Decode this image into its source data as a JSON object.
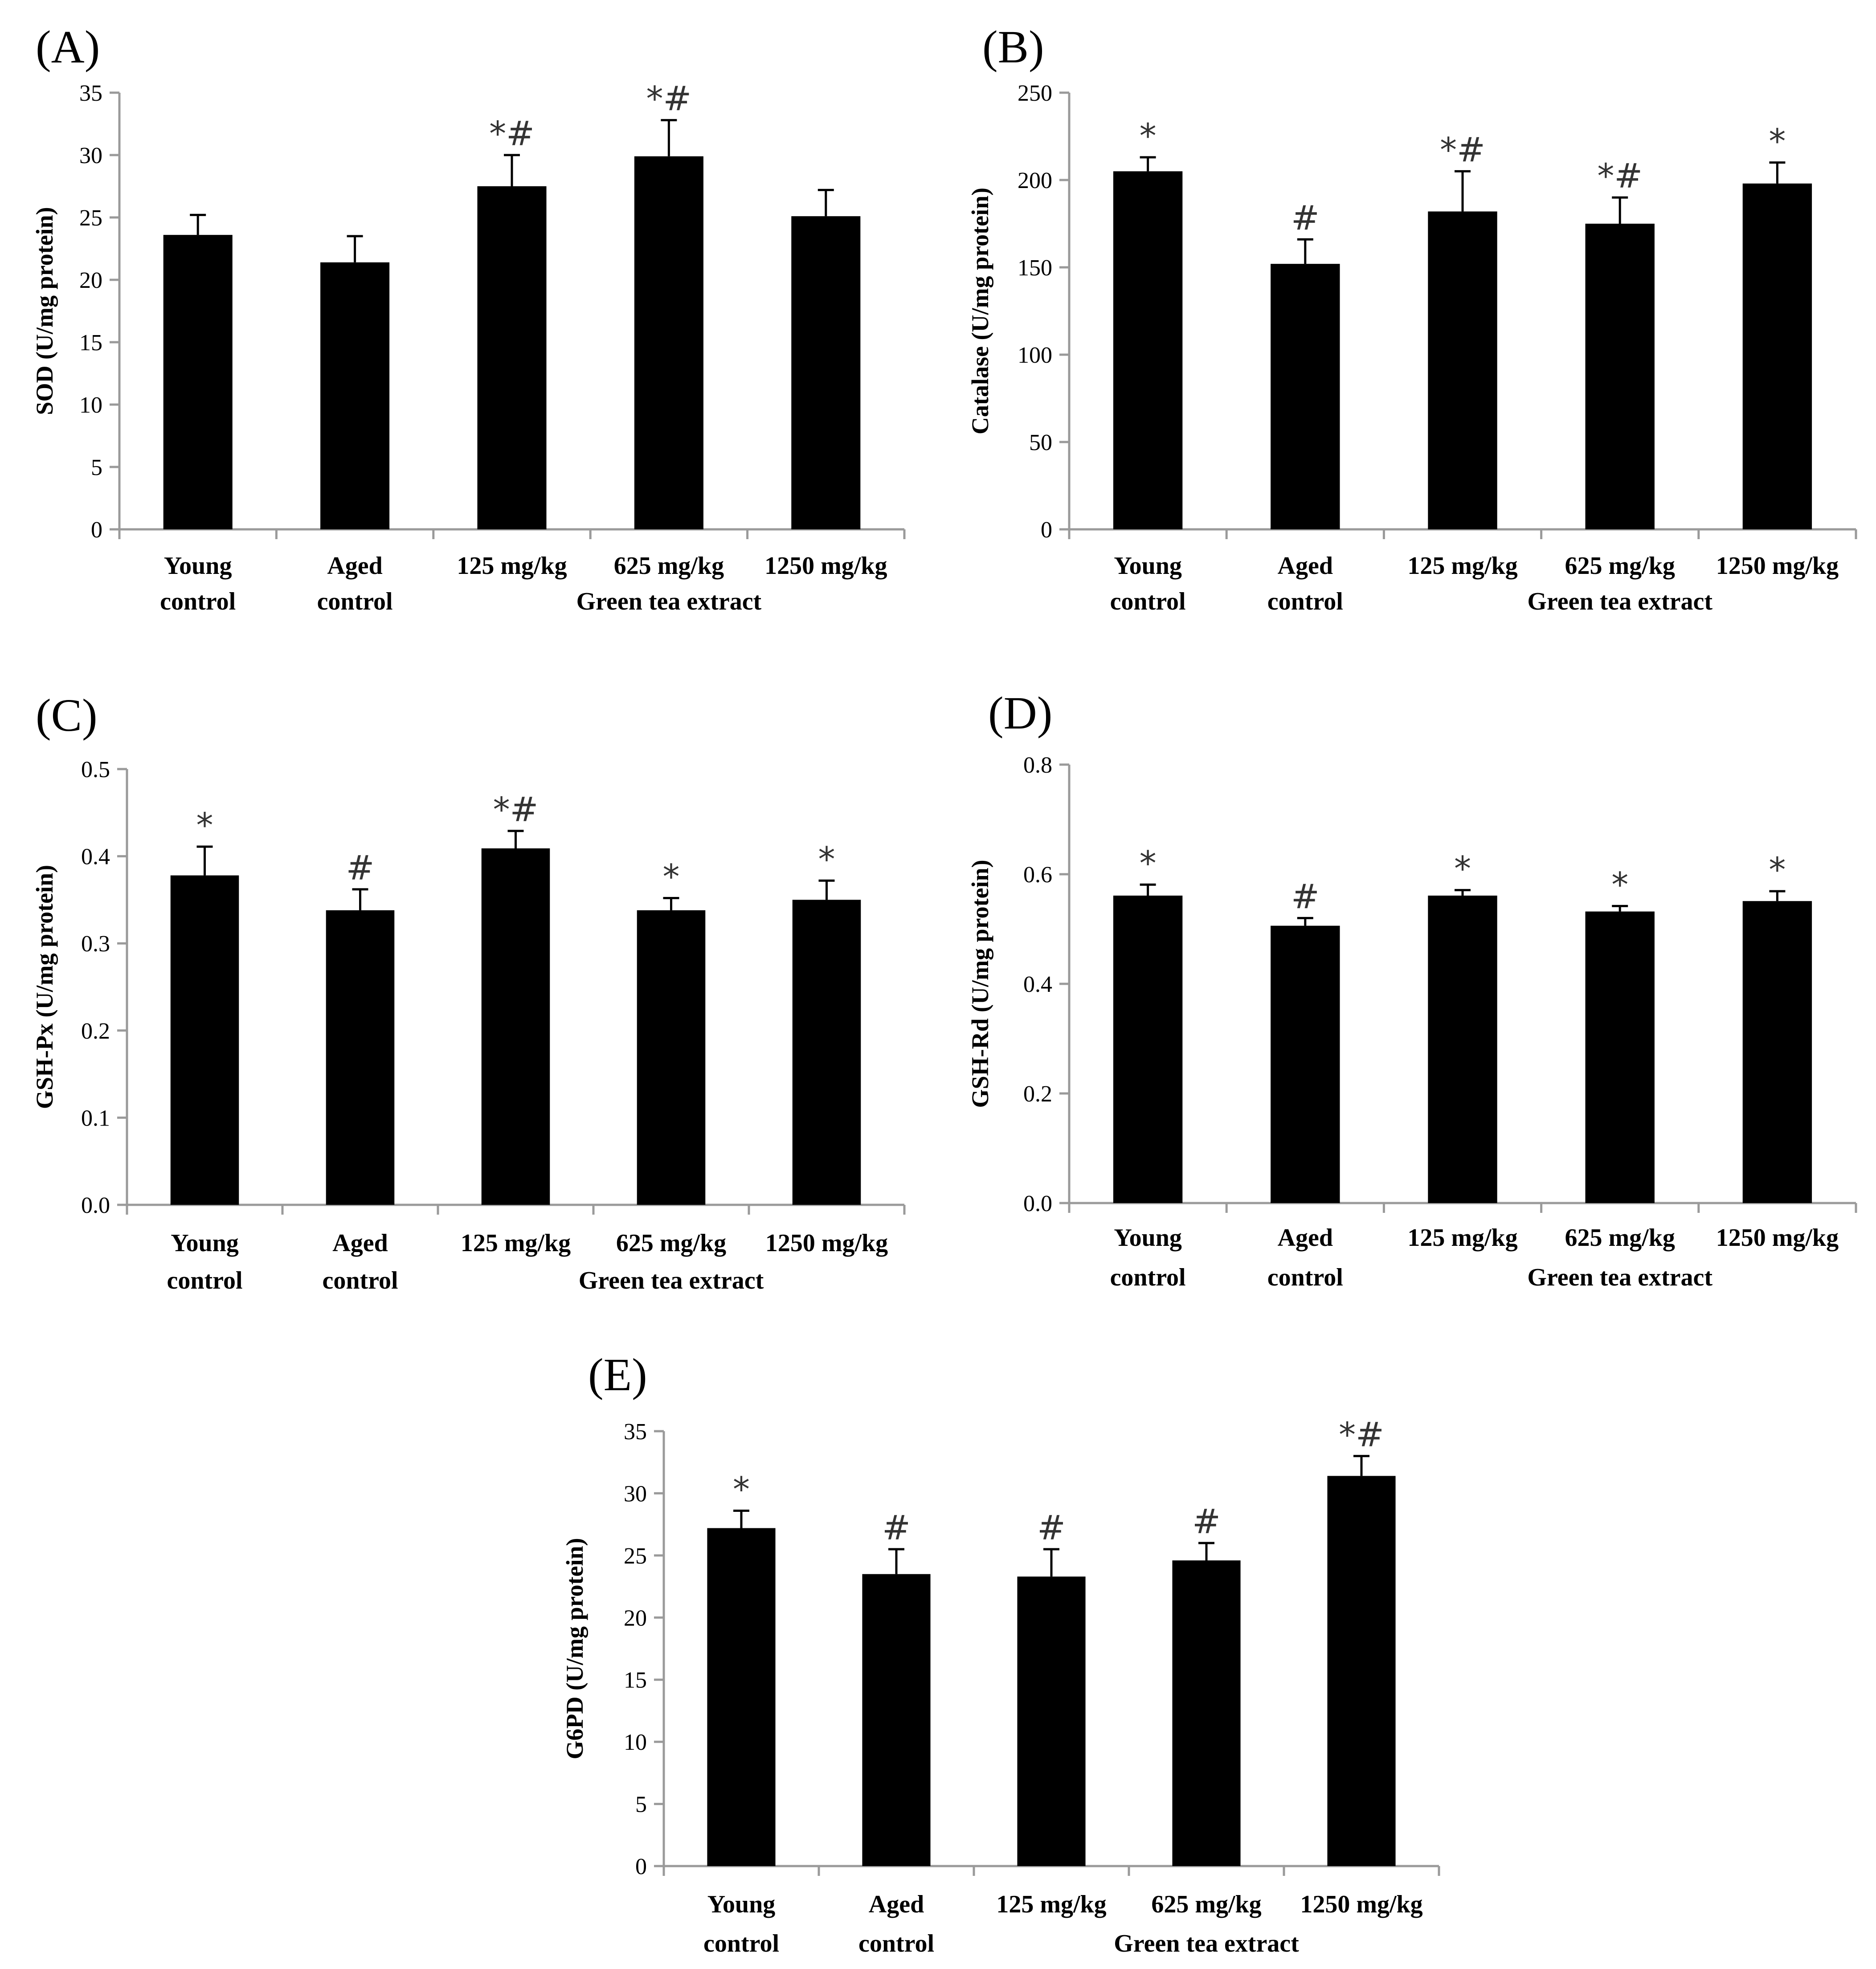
{
  "chart_data": [
    {
      "type": "bar",
      "panel": "(A)",
      "ylabel": "SOD (U/mg protein)",
      "ylim": [
        0,
        35
      ],
      "yticks": [
        "0",
        "5",
        "10",
        "15",
        "20",
        "25",
        "30",
        "35"
      ],
      "categories": [
        "Young control",
        "Aged control",
        "125 mg/kg",
        "625 mg/kg",
        "1250 mg/kg"
      ],
      "category_lines": [
        [
          "Young",
          "control"
        ],
        [
          "Aged",
          "control"
        ],
        [
          "125 mg/kg"
        ],
        [
          "625 mg/kg"
        ],
        [
          "1250 mg/kg"
        ]
      ],
      "group_label": "Green tea extract",
      "values": [
        23.6,
        21.4,
        27.5,
        29.9,
        25.1
      ],
      "errors": [
        1.6,
        2.1,
        2.5,
        2.9,
        2.1
      ],
      "marks": [
        "",
        "",
        "*#",
        "*#",
        ""
      ]
    },
    {
      "type": "bar",
      "panel": "(B)",
      "ylabel": "Catalase (U/mg protein)",
      "ylim": [
        0,
        250
      ],
      "yticks": [
        "0",
        "50",
        "100",
        "150",
        "200",
        "250"
      ],
      "categories": [
        "Young control",
        "Aged control",
        "125 mg/kg",
        "625 mg/kg",
        "1250 mg/kg"
      ],
      "category_lines": [
        [
          "Young",
          "control"
        ],
        [
          "Aged",
          "control"
        ],
        [
          "125 mg/kg"
        ],
        [
          "625 mg/kg"
        ],
        [
          "1250 mg/kg"
        ]
      ],
      "group_label": "Green tea extract",
      "values": [
        205,
        152,
        182,
        175,
        198
      ],
      "errors": [
        8,
        14,
        23,
        15,
        12
      ],
      "marks": [
        "*",
        "#",
        "*#",
        "*#",
        "*"
      ]
    },
    {
      "type": "bar",
      "panel": "(C)",
      "ylabel": "GSH-Px (U/mg protein)",
      "ylim": [
        0,
        0.5
      ],
      "yticks": [
        "0.0",
        "0.1",
        "0.2",
        "0.3",
        "0.4",
        "0.5"
      ],
      "categories": [
        "Young control",
        "Aged control",
        "125 mg/kg",
        "625 mg/kg",
        "1250 mg/kg"
      ],
      "category_lines": [
        [
          "Young",
          "control"
        ],
        [
          "Aged",
          "control"
        ],
        [
          "125 mg/kg"
        ],
        [
          "625 mg/kg"
        ],
        [
          "1250 mg/kg"
        ]
      ],
      "group_label": "Green tea extract",
      "values": [
        0.378,
        0.338,
        0.409,
        0.338,
        0.35
      ],
      "errors": [
        0.033,
        0.024,
        0.02,
        0.014,
        0.022
      ],
      "marks": [
        "*",
        "#",
        "*#",
        "*",
        "*"
      ]
    },
    {
      "type": "bar",
      "panel": "(D)",
      "ylabel": "GSH-Rd (U/mg protein)",
      "ylim": [
        0,
        0.8
      ],
      "yticks": [
        "0.0",
        "0.2",
        "0.4",
        "0.6",
        "0.8"
      ],
      "categories": [
        "Young control",
        "Aged control",
        "125 mg/kg",
        "625 mg/kg",
        "1250 mg/kg"
      ],
      "category_lines": [
        [
          "Young",
          "control"
        ],
        [
          "Aged",
          "control"
        ],
        [
          "125 mg/kg"
        ],
        [
          "625 mg/kg"
        ],
        [
          "1250 mg/kg"
        ]
      ],
      "group_label": "Green tea extract",
      "values": [
        0.561,
        0.506,
        0.561,
        0.532,
        0.551
      ],
      "errors": [
        0.02,
        0.014,
        0.01,
        0.01,
        0.018
      ],
      "marks": [
        "*",
        "#",
        "*",
        "*",
        "*"
      ]
    },
    {
      "type": "bar",
      "panel": "(E)",
      "ylabel": "G6PD (U/mg protein)",
      "ylim": [
        0,
        35
      ],
      "yticks": [
        "0",
        "5",
        "10",
        "15",
        "20",
        "25",
        "30",
        "35"
      ],
      "categories": [
        "Young control",
        "Aged control",
        "125 mg/kg",
        "625 mg/kg",
        "1250 mg/kg"
      ],
      "category_lines": [
        [
          "Young",
          "control"
        ],
        [
          "Aged",
          "control"
        ],
        [
          "125 mg/kg"
        ],
        [
          "625 mg/kg"
        ],
        [
          "1250 mg/kg"
        ]
      ],
      "group_label": "Green tea extract",
      "values": [
        27.2,
        23.5,
        23.3,
        24.6,
        31.4
      ],
      "errors": [
        1.4,
        2.0,
        2.2,
        1.4,
        1.6
      ],
      "marks": [
        "*",
        "#",
        "#",
        "#",
        "*#"
      ]
    }
  ]
}
